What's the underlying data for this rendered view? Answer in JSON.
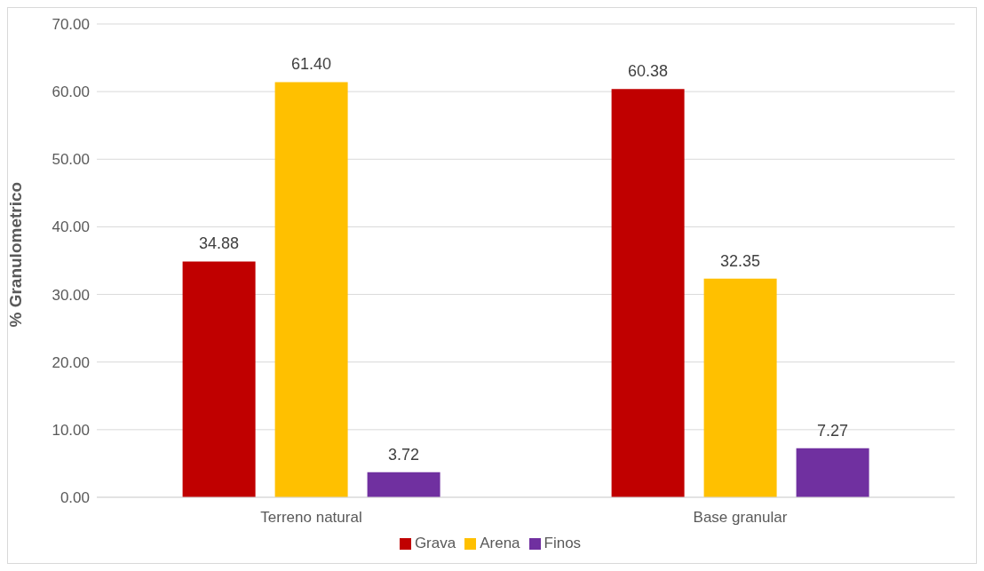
{
  "chart_data": {
    "type": "bar",
    "ylabel": "% Granulometrico",
    "categories": [
      "Terreno natural",
      "Base granular"
    ],
    "series": [
      {
        "name": "Grava",
        "color": "#c00000",
        "values": [
          34.88,
          60.38
        ],
        "value_labels": [
          "34.88",
          "60.38"
        ]
      },
      {
        "name": "Arena",
        "color": "#ffc000",
        "values": [
          61.4,
          32.35
        ],
        "value_labels": [
          "61.40",
          "32.35"
        ]
      },
      {
        "name": "Finos",
        "color": "#7030a0",
        "values": [
          3.72,
          7.27
        ],
        "value_labels": [
          "3.72",
          "7.27"
        ]
      }
    ],
    "ylim": [
      0,
      70
    ],
    "yticks": [
      {
        "value": 0,
        "label": "0.00"
      },
      {
        "value": 10,
        "label": "10.00"
      },
      {
        "value": 20,
        "label": "20.00"
      },
      {
        "value": 30,
        "label": "30.00"
      },
      {
        "value": 40,
        "label": "40.00"
      },
      {
        "value": 50,
        "label": "50.00"
      },
      {
        "value": 60,
        "label": "60.00"
      },
      {
        "value": 70,
        "label": "70.00"
      }
    ],
    "grid": "y",
    "legend": "bottom"
  }
}
